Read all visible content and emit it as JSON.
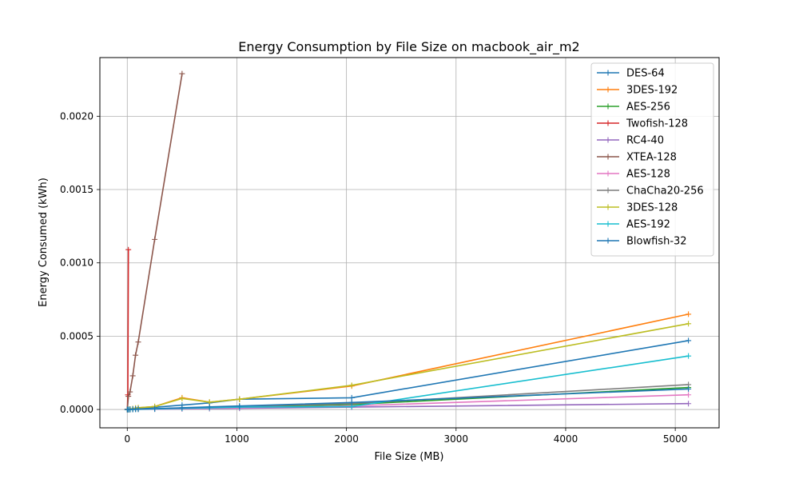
{
  "chart_data": {
    "type": "line",
    "title": "Energy Consumption by File Size on macbook_air_m2",
    "xlabel": "File Size (MB)",
    "ylabel": "Energy Consumed (kWh)",
    "xlim": [
      -250,
      5400
    ],
    "ylim": [
      -0.000125,
      0.0024
    ],
    "xticks": [
      0,
      1000,
      2000,
      3000,
      4000,
      5000
    ],
    "xtick_labels": [
      "0",
      "1000",
      "2000",
      "3000",
      "4000",
      "5000"
    ],
    "yticks": [
      0.0,
      0.0005,
      0.001,
      0.0015,
      0.002
    ],
    "ytick_labels": [
      "0.0000",
      "0.0005",
      "0.0010",
      "0.0015",
      "0.0020"
    ],
    "grid": true,
    "legend_position": "top-right",
    "series": [
      {
        "name": "DES-64",
        "color": "#1f77b4",
        "x": [
          1,
          10,
          25,
          50,
          75,
          100,
          250,
          500,
          750,
          1024,
          2048,
          5120
        ],
        "y": [
          0,
          0,
          2e-06,
          4e-06,
          6e-06,
          8e-06,
          1.5e-05,
          3e-05,
          4.5e-05,
          7e-05,
          8e-05,
          0.00047
        ]
      },
      {
        "name": "3DES-192",
        "color": "#ff7f0e",
        "x": [
          1,
          10,
          25,
          50,
          75,
          100,
          250,
          500,
          750,
          1024,
          2048,
          5120
        ],
        "y": [
          0,
          1e-06,
          3e-06,
          6e-06,
          9e-06,
          1.2e-05,
          2e-05,
          8e-05,
          5e-05,
          7e-05,
          0.00016,
          0.00065
        ]
      },
      {
        "name": "AES-256",
        "color": "#2ca02c",
        "x": [
          1,
          10,
          25,
          50,
          75,
          100,
          250,
          500,
          750,
          1024,
          2048,
          5120
        ],
        "y": [
          0,
          0,
          0,
          1e-06,
          1e-06,
          2e-06,
          4e-06,
          8e-06,
          1.2e-05,
          1.7e-05,
          3.4e-05,
          0.00015
        ]
      },
      {
        "name": "Twofish-128",
        "color": "#d62728",
        "x": [
          1,
          5,
          10
        ],
        "y": [
          0,
          0.0001,
          0.00109
        ]
      },
      {
        "name": "RC4-40",
        "color": "#9467bd",
        "x": [
          1,
          10,
          25,
          50,
          75,
          100,
          250,
          500,
          750,
          1024,
          2048,
          5120
        ],
        "y": [
          0,
          0,
          0,
          0,
          1e-06,
          1e-06,
          2e-06,
          4e-06,
          6e-06,
          8e-06,
          1.6e-05,
          4e-05
        ]
      },
      {
        "name": "XTEA-128",
        "color": "#8c564b",
        "x": [
          1,
          10,
          25,
          50,
          75,
          100,
          250,
          500
        ],
        "y": [
          2e-06,
          9e-05,
          0.00012,
          0.00023,
          0.00037,
          0.00046,
          0.00116,
          0.00229
        ]
      },
      {
        "name": "AES-128",
        "color": "#e377c2",
        "x": [
          1,
          10,
          25,
          50,
          75,
          100,
          250,
          500,
          750,
          1024,
          2048,
          5120
        ],
        "y": [
          0,
          0,
          0,
          1e-06,
          1e-06,
          2e-06,
          3e-06,
          6e-06,
          9e-06,
          1.2e-05,
          2.5e-05,
          0.0001
        ]
      },
      {
        "name": "ChaCha20-256",
        "color": "#7f7f7f",
        "x": [
          1,
          10,
          25,
          50,
          75,
          100,
          250,
          500,
          750,
          1024,
          2048,
          5120
        ],
        "y": [
          0,
          0,
          0,
          1e-06,
          2e-06,
          3e-06,
          5e-06,
          1e-05,
          1.5e-05,
          2e-05,
          4e-05,
          0.00017
        ]
      },
      {
        "name": "3DES-128",
        "color": "#bcbd22",
        "x": [
          1,
          10,
          25,
          50,
          75,
          100,
          250,
          500,
          750,
          1024,
          2048,
          5120
        ],
        "y": [
          0,
          1e-06,
          3e-06,
          6e-06,
          9e-06,
          1.2e-05,
          2e-05,
          7.5e-05,
          5e-05,
          7e-05,
          0.000165,
          0.000585
        ]
      },
      {
        "name": "AES-192",
        "color": "#17becf",
        "x": [
          1,
          10,
          25,
          50,
          75,
          100,
          250,
          500,
          750,
          1024,
          2048,
          5120
        ],
        "y": [
          0,
          0,
          0,
          1e-06,
          1e-06,
          2e-06,
          4e-06,
          8e-06,
          1.2e-05,
          1.6e-05,
          2e-05,
          0.000365
        ]
      },
      {
        "name": "Blowfish-32",
        "color": "#1f77b4",
        "x": [
          1,
          10,
          25,
          50,
          75,
          100,
          250,
          500,
          750,
          1024,
          2048,
          5120
        ],
        "y": [
          0,
          0,
          1e-06,
          2e-06,
          3e-06,
          4e-06,
          6e-06,
          1.2e-05,
          1.8e-05,
          2.4e-05,
          4.8e-05,
          0.00014
        ]
      }
    ]
  }
}
